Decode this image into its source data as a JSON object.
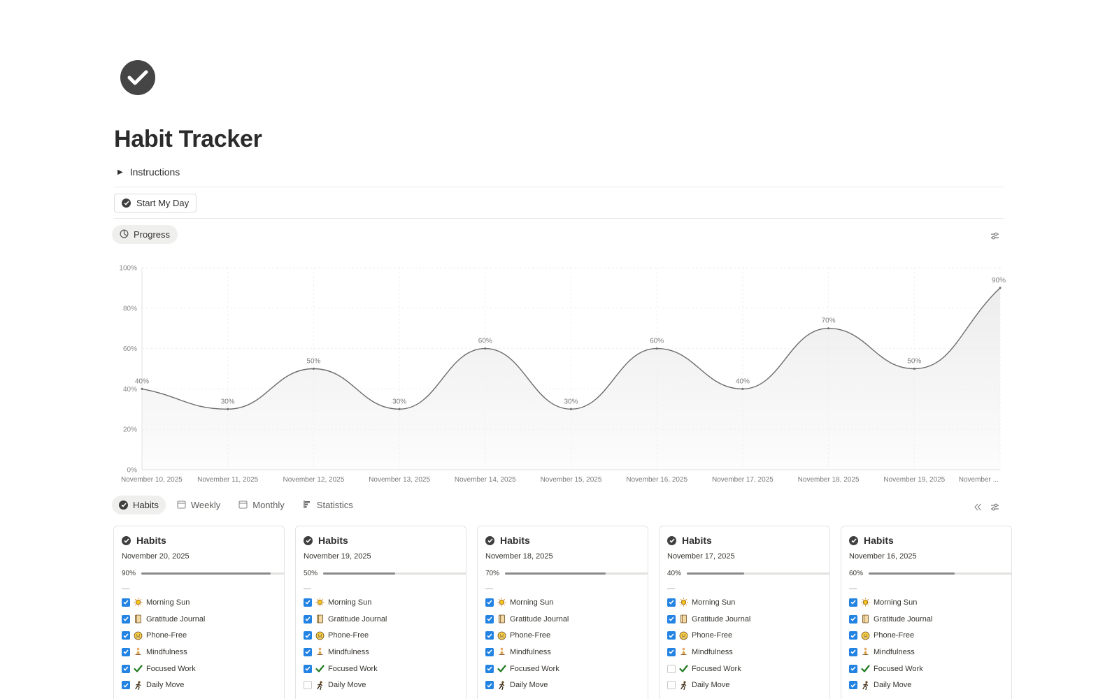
{
  "page": {
    "icon": "check-circle-icon",
    "title": "Habit Tracker",
    "instructions_toggle": "Instructions",
    "start_button": "Start My Day"
  },
  "progress_view": {
    "tab_label": "Progress"
  },
  "chart_data": {
    "type": "area",
    "categories": [
      "November 10, 2025",
      "November 11, 2025",
      "November 12, 2025",
      "November 13, 2025",
      "November 14, 2025",
      "November 15, 2025",
      "November 16, 2025",
      "November 17, 2025",
      "November 18, 2025",
      "November 19, 2025",
      "November ..."
    ],
    "values": [
      40,
      30,
      50,
      30,
      60,
      30,
      60,
      40,
      70,
      50,
      90
    ],
    "value_labels": [
      "40%",
      "30%",
      "50%",
      "30%",
      "60%",
      "30%",
      "60%",
      "40%",
      "70%",
      "50%",
      "90%"
    ],
    "y_ticks": [
      "0%",
      "20%",
      "40%",
      "60%",
      "80%",
      "100%"
    ],
    "ylim": [
      0,
      100
    ],
    "grid": true,
    "line_color": "#6b6b6b",
    "fill_color": "#ededed"
  },
  "views": {
    "tabs": [
      {
        "label": "Habits",
        "icon": "check-circle-icon",
        "active": true
      },
      {
        "label": "Weekly",
        "icon": "calendar-icon",
        "active": false
      },
      {
        "label": "Monthly",
        "icon": "calendar-icon",
        "active": false
      },
      {
        "label": "Statistics",
        "icon": "bar-chart-icon",
        "active": false
      }
    ]
  },
  "cards": [
    {
      "title": "Habits",
      "date": "November 20, 2025",
      "progress_label": "90%",
      "progress": 0.9,
      "separator": "—",
      "habits": [
        {
          "label": "Morning Sun",
          "done": true
        },
        {
          "label": "Gratitude Journal",
          "done": true
        },
        {
          "label": "Phone-Free",
          "done": true
        },
        {
          "label": "Mindfulness",
          "done": true
        },
        {
          "label": "Focused Work",
          "done": true
        },
        {
          "label": "Daily Move",
          "done": true
        }
      ]
    },
    {
      "title": "Habits",
      "date": "November 19, 2025",
      "progress_label": "50%",
      "progress": 0.5,
      "separator": "—",
      "habits": [
        {
          "label": "Morning Sun",
          "done": true
        },
        {
          "label": "Gratitude Journal",
          "done": true
        },
        {
          "label": "Phone-Free",
          "done": true
        },
        {
          "label": "Mindfulness",
          "done": true
        },
        {
          "label": "Focused Work",
          "done": true
        },
        {
          "label": "Daily Move",
          "done": false
        }
      ]
    },
    {
      "title": "Habits",
      "date": "November 18, 2025",
      "progress_label": "70%",
      "progress": 0.7,
      "separator": "—",
      "habits": [
        {
          "label": "Morning Sun",
          "done": true
        },
        {
          "label": "Gratitude Journal",
          "done": true
        },
        {
          "label": "Phone-Free",
          "done": true
        },
        {
          "label": "Mindfulness",
          "done": true
        },
        {
          "label": "Focused Work",
          "done": true
        },
        {
          "label": "Daily Move",
          "done": true
        }
      ]
    },
    {
      "title": "Habits",
      "date": "November 17, 2025",
      "progress_label": "40%",
      "progress": 0.4,
      "separator": "—",
      "habits": [
        {
          "label": "Morning Sun",
          "done": true
        },
        {
          "label": "Gratitude Journal",
          "done": true
        },
        {
          "label": "Phone-Free",
          "done": true
        },
        {
          "label": "Mindfulness",
          "done": true
        },
        {
          "label": "Focused Work",
          "done": false
        },
        {
          "label": "Daily Move",
          "done": false
        }
      ]
    },
    {
      "title": "Habits",
      "date": "November 16, 2025",
      "progress_label": "60%",
      "progress": 0.6,
      "separator": "—",
      "habits": [
        {
          "label": "Morning Sun",
          "done": true
        },
        {
          "label": "Gratitude Journal",
          "done": true
        },
        {
          "label": "Phone-Free",
          "done": true
        },
        {
          "label": "Mindfulness",
          "done": true
        },
        {
          "label": "Focused Work",
          "done": true
        },
        {
          "label": "Daily Move",
          "done": true
        }
      ]
    }
  ],
  "habit_icons": [
    "sun-icon",
    "notebook-icon",
    "phone-free-icon",
    "meditation-icon",
    "checkmark-icon",
    "running-icon"
  ],
  "colors": {
    "checkbox_on": "#2383e2",
    "accent_dark": "#454545"
  }
}
